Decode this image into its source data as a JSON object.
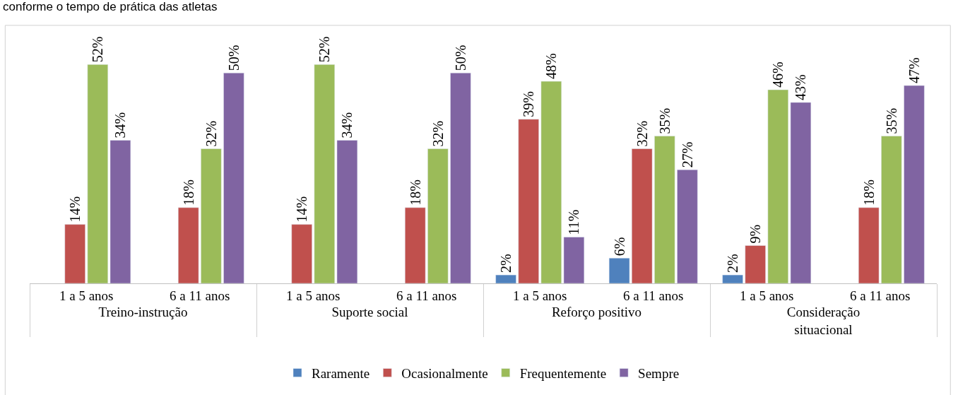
{
  "chart_data": {
    "type": "bar",
    "title": "conforme o tempo de prática das atletas",
    "categories": [
      "1 a 5 anos",
      "6 a 11 anos",
      "1 a 5 anos",
      "6 a 11 anos",
      "1 a 5 anos",
      "6 a 11 anos",
      "1 a 5 anos",
      "6 a 11 anos"
    ],
    "annotations": [
      "Treino-instrução",
      "Suporte social",
      "Reforço positivo",
      "Consideração situacional"
    ],
    "series": [
      {
        "name": "Raramente",
        "color": "#4f81bd",
        "values": [
          null,
          null,
          null,
          null,
          2,
          6,
          2,
          null
        ],
        "value_labels": [
          null,
          null,
          null,
          null,
          "2%",
          "6%",
          "2%",
          null
        ]
      },
      {
        "name": "Ocasionalmente",
        "color": "#c0504d",
        "values": [
          14,
          18,
          14,
          18,
          39,
          32,
          9,
          18
        ],
        "value_labels": [
          "14%",
          "18%",
          "14%",
          "18%",
          "39%",
          "32%",
          "9%",
          "18%"
        ]
      },
      {
        "name": "Frequentemente",
        "color": "#9bbb59",
        "values": [
          52,
          32,
          52,
          32,
          48,
          35,
          46,
          35
        ],
        "value_labels": [
          "52%",
          "32%",
          "52%",
          "32%",
          "48%",
          "35%",
          "46%",
          "35%"
        ]
      },
      {
        "name": "Sempre",
        "color": "#8064a2",
        "values": [
          34,
          50,
          34,
          50,
          11,
          27,
          43,
          47
        ],
        "value_labels": [
          "34%",
          "50%",
          "34%",
          "50%",
          "11%",
          "27%",
          "43%",
          "47%"
        ]
      }
    ],
    "legend": "bottom"
  }
}
